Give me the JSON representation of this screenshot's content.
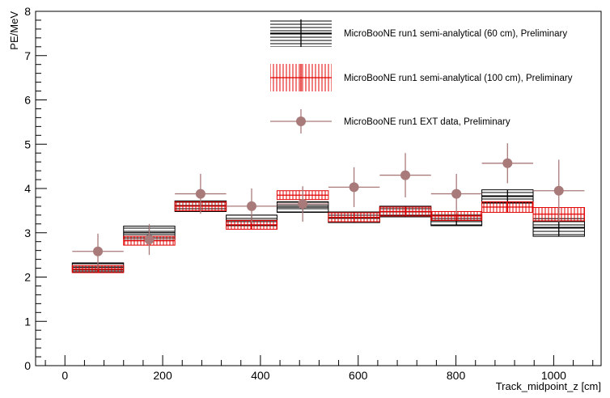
{
  "chart_data": {
    "type": "binned-errors",
    "y_label": "PE/MeV",
    "x_label": "Track_midpoint_z [cm]",
    "bin_edges": [
      15,
      120,
      225,
      330,
      434,
      539,
      644,
      749,
      853,
      958,
      1063
    ],
    "xlim": [
      -60,
      1097
    ],
    "xticks": [
      0,
      200,
      400,
      600,
      800,
      1000
    ],
    "ylim": [
      0,
      8
    ],
    "yticks": [
      0,
      1,
      2,
      3,
      4,
      5,
      6,
      7,
      8
    ],
    "legend": "top-right",
    "series": [
      {
        "name": "MicroBooNE run1 semi-analytical (60 cm), Preliminary",
        "color": "#000000",
        "style": "hatch-horizontal",
        "values": [
          2.22,
          3.0,
          3.6,
          3.28,
          3.58,
          3.35,
          3.48,
          3.28,
          3.82,
          3.12
        ],
        "errors": [
          0.1,
          0.15,
          0.12,
          0.12,
          0.12,
          0.12,
          0.12,
          0.12,
          0.15,
          0.2
        ]
      },
      {
        "name": "MicroBooNE run1 semi-analytical (100 cm), Preliminary",
        "color": "#e00000",
        "style": "hatch-vertical",
        "values": [
          2.18,
          2.82,
          3.6,
          3.18,
          3.85,
          3.35,
          3.48,
          3.38,
          3.58,
          3.42
        ],
        "errors": [
          0.08,
          0.1,
          0.1,
          0.1,
          0.1,
          0.1,
          0.1,
          0.1,
          0.12,
          0.15
        ]
      },
      {
        "name": "MicroBooNE run1 EXT data, Preliminary",
        "color": "#a97a7a",
        "style": "marker",
        "values": [
          2.58,
          2.85,
          3.88,
          3.6,
          3.65,
          4.03,
          4.3,
          3.88,
          4.57,
          3.95
        ],
        "errors": [
          0.4,
          0.35,
          0.45,
          0.4,
          0.4,
          0.45,
          0.5,
          0.45,
          0.45,
          0.7
        ]
      }
    ]
  }
}
